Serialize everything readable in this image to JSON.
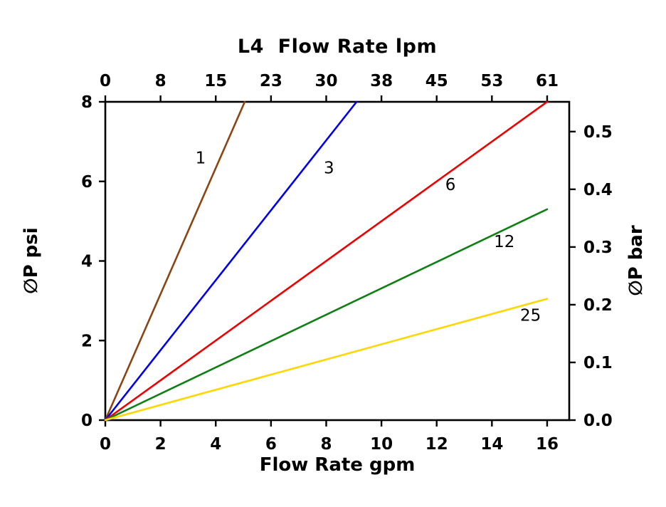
{
  "page": {
    "background": "#ffffff"
  },
  "chart_data": {
    "type": "line",
    "title": "L4  Flow Rate lpm",
    "xlabel": "Flow Rate gpm",
    "ylabel_left": "∅P psi",
    "ylabel_right": "∅P bar",
    "x_bottom_ticks": [
      0,
      2,
      4,
      6,
      8,
      10,
      12,
      14,
      16
    ],
    "x_top_ticks": [
      0,
      8,
      15,
      23,
      30,
      38,
      45,
      53,
      61
    ],
    "y_left_ticks": [
      0,
      2,
      4,
      6,
      8
    ],
    "y_right_ticks": [
      "0.0",
      "0.1",
      "0.2",
      "0.3",
      "0.4",
      "0.5"
    ],
    "xlim": [
      0,
      16.8
    ],
    "ylim": [
      0,
      8
    ],
    "bar_per_psi": 0.0689476,
    "grid": false,
    "legend": "inline-labels",
    "axis_color": "#000000",
    "series": [
      {
        "name": "1",
        "color": "#8B4513",
        "points": [
          [
            0,
            0
          ],
          [
            5.05,
            8
          ]
        ],
        "label_at": [
          3.45,
          6.45
        ]
      },
      {
        "name": "3",
        "color": "#0000EE",
        "points": [
          [
            0,
            0
          ],
          [
            9.1,
            8
          ]
        ],
        "label_at": [
          8.1,
          6.2
        ]
      },
      {
        "name": "6",
        "color": "#EE0000",
        "points": [
          [
            0,
            0
          ],
          [
            16,
            8
          ]
        ],
        "label_at": [
          12.5,
          5.78
        ]
      },
      {
        "name": "12",
        "color": "#0E7F12",
        "points": [
          [
            0,
            0
          ],
          [
            16,
            5.3
          ]
        ],
        "label_at": [
          14.45,
          4.35
        ]
      },
      {
        "name": "25",
        "color": "#FFD700",
        "points": [
          [
            0,
            0
          ],
          [
            16,
            3.05
          ]
        ],
        "label_at": [
          15.4,
          2.5
        ]
      }
    ]
  }
}
